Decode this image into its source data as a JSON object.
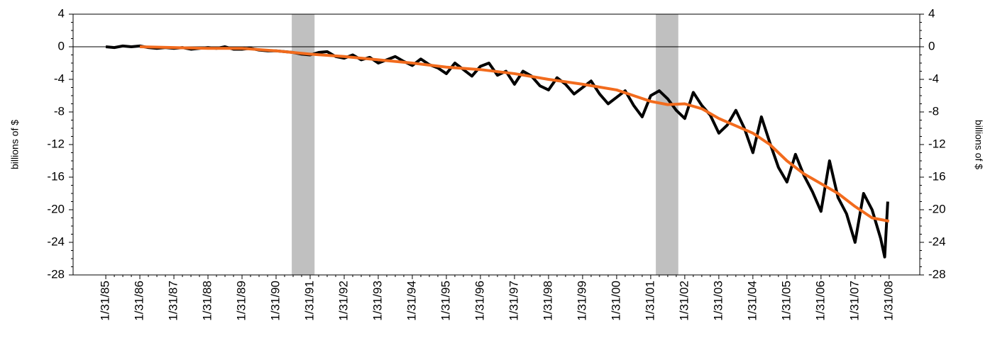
{
  "chart_data": {
    "type": "line",
    "y_label": "billions of $",
    "y2_label": "billions of $",
    "xlim": [
      1984.04,
      2008.9
    ],
    "xticks": [
      {
        "value": 1985,
        "label": "1/31/85"
      },
      {
        "value": 1986,
        "label": "1/31/86"
      },
      {
        "value": 1987,
        "label": "1/31/87"
      },
      {
        "value": 1988,
        "label": "1/31/88"
      },
      {
        "value": 1989,
        "label": "1/31/89"
      },
      {
        "value": 1990,
        "label": "1/31/90"
      },
      {
        "value": 1991,
        "label": "1/31/91"
      },
      {
        "value": 1992,
        "label": "1/31/92"
      },
      {
        "value": 1993,
        "label": "1/31/93"
      },
      {
        "value": 1994,
        "label": "1/31/94"
      },
      {
        "value": 1995,
        "label": "1/31/95"
      },
      {
        "value": 1996,
        "label": "1/31/96"
      },
      {
        "value": 1997,
        "label": "1/31/97"
      },
      {
        "value": 1998,
        "label": "1/31/98"
      },
      {
        "value": 1999,
        "label": "1/31/99"
      },
      {
        "value": 2000,
        "label": "1/31/00"
      },
      {
        "value": 2001,
        "label": "1/31/01"
      },
      {
        "value": 2002,
        "label": "1/31/02"
      },
      {
        "value": 2003,
        "label": "1/31/03"
      },
      {
        "value": 2004,
        "label": "1/31/04"
      },
      {
        "value": 2005,
        "label": "1/31/05"
      },
      {
        "value": 2006,
        "label": "1/31/06"
      },
      {
        "value": 2007,
        "label": "1/31/07"
      },
      {
        "value": 2008,
        "label": "1/31/08"
      }
    ],
    "ylim": [
      -28,
      4
    ],
    "yticks": [
      -28,
      -24,
      -20,
      -16,
      -12,
      -8,
      -4,
      0,
      4
    ],
    "y2lim": [
      -28,
      4
    ],
    "y2ticks": [
      -28,
      -24,
      -20,
      -16,
      -12,
      -8,
      -4,
      0,
      4
    ],
    "shaded_ranges": [
      [
        1990.46,
        1991.13
      ],
      [
        2001.15,
        2001.81
      ]
    ],
    "shade_color": "#c0c0c0",
    "series": [
      {
        "color": "#000000",
        "x": [
          1985,
          1985.25,
          1985.5,
          1985.75,
          1986,
          1986.25,
          1986.5,
          1986.75,
          1987,
          1987.25,
          1987.5,
          1987.75,
          1988,
          1988.25,
          1988.5,
          1988.75,
          1989,
          1989.25,
          1989.5,
          1989.75,
          1990,
          1990.25,
          1990.5,
          1990.75,
          1991,
          1991.25,
          1991.5,
          1991.75,
          1992,
          1992.25,
          1992.5,
          1992.75,
          1993,
          1993.25,
          1993.5,
          1993.75,
          1994,
          1994.25,
          1994.5,
          1994.75,
          1995,
          1995.25,
          1995.5,
          1995.75,
          1996,
          1996.25,
          1996.5,
          1996.75,
          1997,
          1997.25,
          1997.5,
          1997.75,
          1998,
          1998.25,
          1998.5,
          1998.75,
          1999,
          1999.25,
          1999.5,
          1999.75,
          2000,
          2000.25,
          2000.5,
          2000.75,
          2001,
          2001.25,
          2001.5,
          2001.75,
          2002,
          2002.25,
          2002.5,
          2002.75,
          2003,
          2003.25,
          2003.5,
          2003.75,
          2004,
          2004.25,
          2004.5,
          2004.75,
          2005,
          2005.25,
          2005.5,
          2005.75,
          2006,
          2006.25,
          2006.5,
          2006.75,
          2007,
          2007.25,
          2007.5,
          2007.75,
          2007.87,
          2007.96
        ],
        "values": [
          0,
          -0.1,
          0.1,
          0,
          0.1,
          -0.1,
          -0.2,
          -0.1,
          -0.2,
          -0.1,
          -0.3,
          -0.2,
          -0.1,
          -0.2,
          0,
          -0.3,
          -0.3,
          -0.2,
          -0.4,
          -0.5,
          -0.5,
          -0.6,
          -0.7,
          -0.9,
          -1.0,
          -0.7,
          -0.6,
          -1.2,
          -1.4,
          -1.0,
          -1.6,
          -1.3,
          -2.0,
          -1.6,
          -1.2,
          -1.8,
          -2.3,
          -1.5,
          -2.2,
          -2.6,
          -3.3,
          -2.0,
          -2.8,
          -3.6,
          -2.4,
          -2.0,
          -3.5,
          -3.0,
          -4.6,
          -3.0,
          -3.6,
          -4.8,
          -5.3,
          -3.8,
          -4.6,
          -5.8,
          -5.0,
          -4.2,
          -5.8,
          -7.0,
          -6.2,
          -5.4,
          -7.2,
          -8.6,
          -6.0,
          -5.4,
          -6.4,
          -7.8,
          -8.8,
          -5.6,
          -7.2,
          -8.4,
          -10.6,
          -9.6,
          -7.8,
          -10.0,
          -13.0,
          -8.6,
          -11.8,
          -14.8,
          -16.6,
          -13.2,
          -15.8,
          -17.8,
          -20.2,
          -14.0,
          -18.5,
          -20.5,
          -24.0,
          -18.0,
          -20.0,
          -23.5,
          -25.8,
          -19.0
        ]
      },
      {
        "color": "#f26b1d",
        "x": [
          1986,
          1987,
          1988,
          1989,
          1990,
          1991,
          1992,
          1993,
          1994,
          1995,
          1996,
          1997,
          1998,
          1999,
          2000,
          2001,
          2001.5,
          2002,
          2002.5,
          2003,
          2003.5,
          2004,
          2004.5,
          2005,
          2005.5,
          2006,
          2006.5,
          2007,
          2007.5,
          2008
        ],
        "values": [
          0,
          -0.1,
          -0.2,
          -0.2,
          -0.5,
          -0.9,
          -1.2,
          -1.6,
          -2.0,
          -2.5,
          -2.8,
          -3.3,
          -4.0,
          -4.6,
          -5.3,
          -6.7,
          -7.1,
          -7.0,
          -7.6,
          -8.8,
          -9.7,
          -10.6,
          -12.0,
          -14.0,
          -15.6,
          -16.8,
          -18.0,
          -19.6,
          -21.0,
          -21.4
        ]
      }
    ]
  }
}
